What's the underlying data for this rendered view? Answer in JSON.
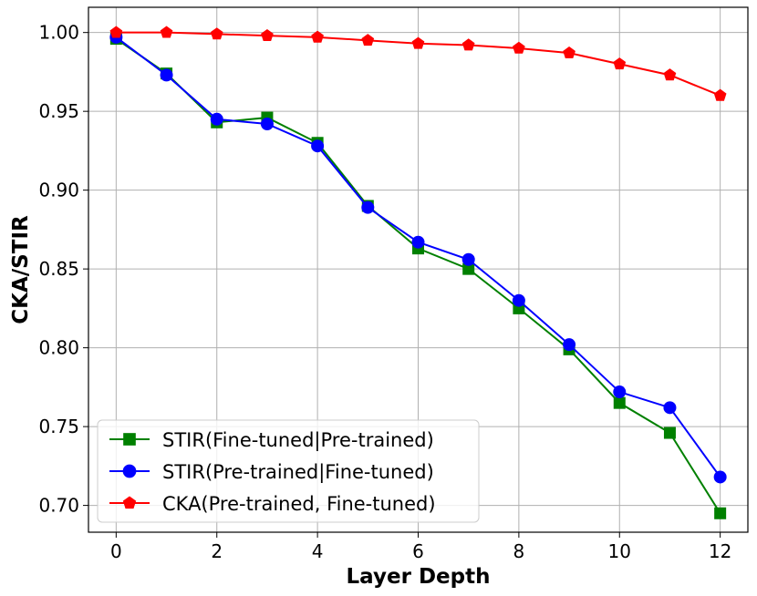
{
  "chart_data": {
    "type": "line",
    "title": "",
    "xlabel": "Layer Depth",
    "ylabel": "CKA/STIR",
    "x": [
      0,
      1,
      2,
      3,
      4,
      5,
      6,
      7,
      8,
      9,
      10,
      11,
      12
    ],
    "xlim": [
      -0.55,
      12.55
    ],
    "ylim": [
      0.683,
      1.016
    ],
    "xticks": [
      0,
      2,
      4,
      6,
      8,
      10,
      12
    ],
    "yticks": [
      0.7,
      0.75,
      0.8,
      0.85,
      0.9,
      0.95,
      1.0
    ],
    "xtick_labels": [
      "0",
      "2",
      "4",
      "6",
      "8",
      "10",
      "12"
    ],
    "ytick_labels": [
      "0.70",
      "0.75",
      "0.80",
      "0.85",
      "0.90",
      "0.95",
      "1.00"
    ],
    "grid": true,
    "legend_position": "lower-left",
    "series": [
      {
        "name": "STIR(Fine-tuned|Pre-trained)",
        "color": "#008000",
        "marker": "square",
        "values": [
          0.996,
          0.974,
          0.943,
          0.946,
          0.93,
          0.89,
          0.863,
          0.85,
          0.825,
          0.799,
          0.765,
          0.746,
          0.695
        ]
      },
      {
        "name": "STIR(Pre-trained|Fine-tuned)",
        "color": "#0000ff",
        "marker": "circle",
        "values": [
          0.997,
          0.973,
          0.945,
          0.942,
          0.928,
          0.889,
          0.867,
          0.856,
          0.83,
          0.802,
          0.772,
          0.762,
          0.718
        ]
      },
      {
        "name": "CKA(Pre-trained, Fine-tuned)",
        "color": "#ff0000",
        "marker": "pentagon",
        "values": [
          1.0,
          1.0,
          0.999,
          0.998,
          0.997,
          0.995,
          0.993,
          0.992,
          0.99,
          0.987,
          0.98,
          0.973,
          0.96
        ]
      }
    ]
  }
}
